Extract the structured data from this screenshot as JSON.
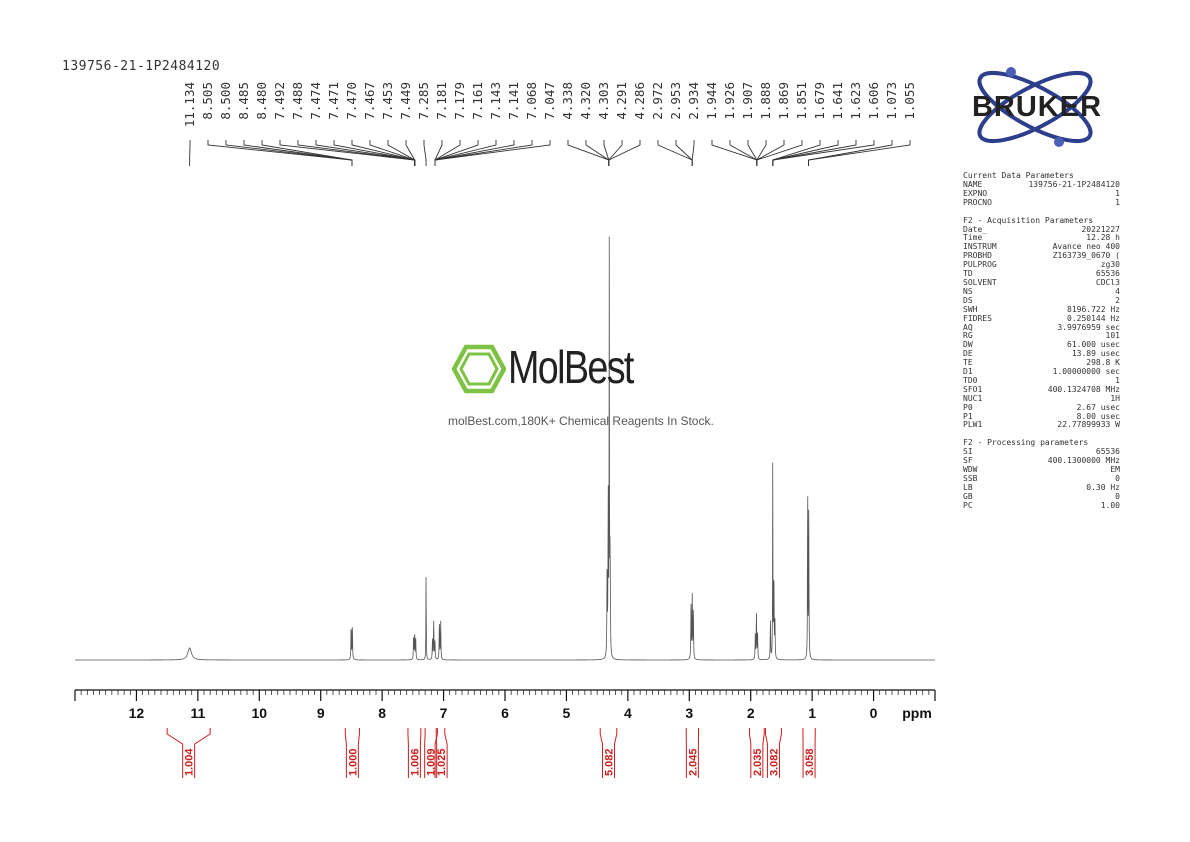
{
  "sample_id": "139756-21-1P2484120",
  "watermark": {
    "brand": "MolBest",
    "tagline": "molBest.com,180K+ Chemical Reagents In Stock.",
    "colors": {
      "hexagon": "#7dc242",
      "text": "#222222"
    },
    "icon": "benzene-hexagon-icon"
  },
  "logo": {
    "text": "BRUKER",
    "icon": "atom-orbit-icon",
    "colors": {
      "orbit": "#2c3e8c",
      "nucleus": "#4a5fb5"
    }
  },
  "parameters": [
    {
      "heading": "Current Data Parameters",
      "rows": [
        {
          "key": "NAME",
          "value": "139756-21-1P2484120"
        },
        {
          "key": "EXPNO",
          "value": "1"
        },
        {
          "key": "PROCNO",
          "value": "1"
        }
      ]
    },
    {
      "heading": "F2 - Acquisition Parameters",
      "rows": [
        {
          "key": "Date_",
          "value": "20221227"
        },
        {
          "key": "Time",
          "value": "12.28 h"
        },
        {
          "key": "INSTRUM",
          "value": "Avance neo 400"
        },
        {
          "key": "PROBHD",
          "value": "Z163739_0670 ("
        },
        {
          "key": "PULPROG",
          "value": "zg30"
        },
        {
          "key": "TD",
          "value": "65536"
        },
        {
          "key": "SOLVENT",
          "value": "CDCl3"
        },
        {
          "key": "NS",
          "value": "4"
        },
        {
          "key": "DS",
          "value": "2"
        },
        {
          "key": "SWH",
          "value": "8196.722 Hz"
        },
        {
          "key": "FIDRES",
          "value": "0.250144 Hz"
        },
        {
          "key": "AQ",
          "value": "3.9976959 sec"
        },
        {
          "key": "RG",
          "value": "101"
        },
        {
          "key": "DW",
          "value": "61.000 usec"
        },
        {
          "key": "DE",
          "value": "13.89 usec"
        },
        {
          "key": "TE",
          "value": "298.8 K"
        },
        {
          "key": "D1",
          "value": "1.00000000 sec"
        },
        {
          "key": "TD0",
          "value": "1"
        },
        {
          "key": "SFO1",
          "value": "400.1324708 MHz"
        },
        {
          "key": "NUC1",
          "value": "1H"
        },
        {
          "key": "P0",
          "value": "2.67 usec"
        },
        {
          "key": "P1",
          "value": "8.00 usec"
        },
        {
          "key": "PLW1",
          "value": "22.77899933 W"
        }
      ]
    },
    {
      "heading": "F2 - Processing parameters",
      "rows": [
        {
          "key": "SI",
          "value": "65536"
        },
        {
          "key": "SF",
          "value": "400.1300000 MHz"
        },
        {
          "key": "WDW",
          "value": "EM"
        },
        {
          "key": "SSB",
          "value": "0"
        },
        {
          "key": "LB",
          "value": "0.30 Hz"
        },
        {
          "key": "GB",
          "value": "0"
        },
        {
          "key": "PC",
          "value": "1.00"
        }
      ]
    }
  ],
  "chart_data": {
    "type": "line",
    "title": "",
    "xlabel": "ppm",
    "ylabel": "",
    "xlim": [
      13.0,
      -1.0
    ],
    "x_reversed": true,
    "ticks": [
      "12",
      "11",
      "10",
      "9",
      "8",
      "7",
      "6",
      "5",
      "4",
      "3",
      "2",
      "1",
      "0"
    ],
    "grid": false,
    "colors": {
      "spectrum": "#555555",
      "integral": "#cc1e1e",
      "axis": "#111111"
    },
    "peak_groups": [
      {
        "labels": [
          "11.134"
        ],
        "ppm": 11.134
      },
      {
        "labels": [
          "8.505",
          "8.500",
          "8.485",
          "8.480"
        ],
        "ppm": 8.49
      },
      {
        "labels": [
          "7.492",
          "7.488",
          "7.474",
          "7.471",
          "7.470",
          "7.467",
          "7.453",
          "7.449"
        ],
        "ppm": 7.47
      },
      {
        "labels": [
          "7.285"
        ],
        "ppm": 7.285
      },
      {
        "labels": [
          "7.181",
          "7.179",
          "7.161",
          "7.143",
          "7.141",
          "7.068",
          "7.047"
        ],
        "ppm": 7.14
      },
      {
        "labels": [
          "4.338",
          "4.320",
          "4.303",
          "4.291",
          "4.286"
        ],
        "ppm": 4.31
      },
      {
        "labels": [
          "2.972",
          "2.953",
          "2.934"
        ],
        "ppm": 2.953
      },
      {
        "labels": [
          "1.944",
          "1.926",
          "1.907",
          "1.888",
          "1.869",
          "1.851"
        ],
        "ppm": 1.9
      },
      {
        "labels": [
          "1.679",
          "1.641",
          "1.623",
          "1.606"
        ],
        "ppm": 1.64
      },
      {
        "labels": [
          "1.073",
          "1.055"
        ],
        "ppm": 1.06
      }
    ],
    "peaks": [
      {
        "ppm": 11.134,
        "height": 0.03,
        "width": 0.035
      },
      {
        "ppm": 8.505,
        "height": 0.09,
        "width": 0.004
      },
      {
        "ppm": 8.485,
        "height": 0.09,
        "width": 0.004
      },
      {
        "ppm": 7.488,
        "height": 0.06,
        "width": 0.004
      },
      {
        "ppm": 7.471,
        "height": 0.07,
        "width": 0.004
      },
      {
        "ppm": 7.453,
        "height": 0.05,
        "width": 0.004
      },
      {
        "ppm": 7.285,
        "height": 0.23,
        "width": 0.003
      },
      {
        "ppm": 7.181,
        "height": 0.05,
        "width": 0.004
      },
      {
        "ppm": 7.161,
        "height": 0.1,
        "width": 0.004
      },
      {
        "ppm": 7.141,
        "height": 0.05,
        "width": 0.004
      },
      {
        "ppm": 7.068,
        "height": 0.1,
        "width": 0.004
      },
      {
        "ppm": 7.047,
        "height": 0.1,
        "width": 0.004
      },
      {
        "ppm": 4.338,
        "height": 0.23,
        "width": 0.004
      },
      {
        "ppm": 4.32,
        "height": 0.4,
        "width": 0.004
      },
      {
        "ppm": 4.303,
        "height": 1.0,
        "width": 0.003
      },
      {
        "ppm": 4.291,
        "height": 0.2,
        "width": 0.004
      },
      {
        "ppm": 4.286,
        "height": 0.1,
        "width": 0.004
      },
      {
        "ppm": 2.972,
        "height": 0.13,
        "width": 0.004
      },
      {
        "ppm": 2.953,
        "height": 0.17,
        "width": 0.004
      },
      {
        "ppm": 2.934,
        "height": 0.13,
        "width": 0.004
      },
      {
        "ppm": 1.926,
        "height": 0.06,
        "width": 0.004
      },
      {
        "ppm": 1.907,
        "height": 0.12,
        "width": 0.004
      },
      {
        "ppm": 1.888,
        "height": 0.07,
        "width": 0.004
      },
      {
        "ppm": 1.679,
        "height": 0.1,
        "width": 0.004
      },
      {
        "ppm": 1.641,
        "height": 0.48,
        "width": 0.003
      },
      {
        "ppm": 1.623,
        "height": 0.22,
        "width": 0.004
      },
      {
        "ppm": 1.606,
        "height": 0.1,
        "width": 0.004
      },
      {
        "ppm": 1.073,
        "height": 0.48,
        "width": 0.003
      },
      {
        "ppm": 1.055,
        "height": 0.36,
        "width": 0.004
      }
    ],
    "integrals": [
      {
        "value": "1.004",
        "from": 11.5,
        "to": 10.8
      },
      {
        "value": "1.000",
        "from": 8.6,
        "to": 8.37
      },
      {
        "value": "1.006",
        "from": 7.58,
        "to": 7.37
      },
      {
        "value": "1.009",
        "from": 7.3,
        "to": 7.12
      },
      {
        "value": "1.025",
        "from": 7.1,
        "to": 6.98
      },
      {
        "value": "5.082",
        "from": 4.45,
        "to": 4.18
      },
      {
        "value": "2.045",
        "from": 3.05,
        "to": 2.85
      },
      {
        "value": "2.035",
        "from": 2.02,
        "to": 1.78
      },
      {
        "value": "3.082",
        "from": 1.76,
        "to": 1.5
      },
      {
        "value": "3.058",
        "from": 1.15,
        "to": 0.95
      }
    ]
  }
}
